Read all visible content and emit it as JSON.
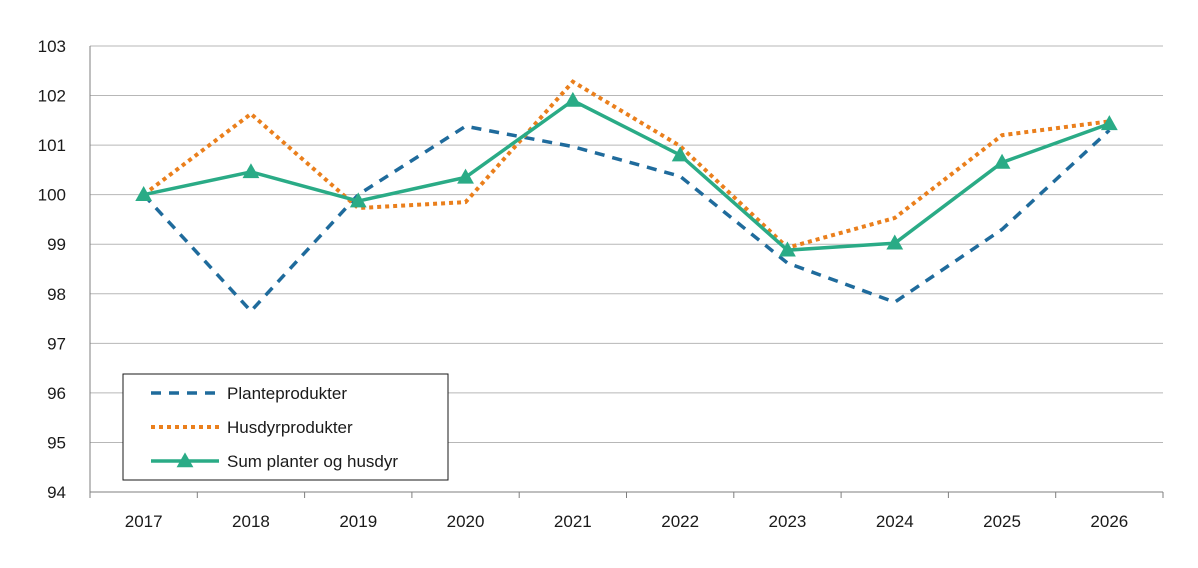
{
  "chart_data": {
    "type": "line",
    "title": "",
    "xlabel": "",
    "ylabel": "",
    "categories": [
      "2017",
      "2018",
      "2019",
      "2020",
      "2021",
      "2022",
      "2023",
      "2024",
      "2025",
      "2026"
    ],
    "ylim": [
      94,
      103
    ],
    "yticks": [
      "94",
      "95",
      "96",
      "97",
      "98",
      "99",
      "100",
      "101",
      "102",
      "103"
    ],
    "grid": "horizontal",
    "legend_position": "bottom-left",
    "series": [
      {
        "name": "Planteprodukter",
        "values": [
          100.0,
          97.65,
          100.0,
          101.38,
          100.97,
          100.37,
          98.62,
          97.83,
          99.3,
          101.3
        ],
        "color": "#1f6b9c",
        "style": "dashed",
        "marker": "none"
      },
      {
        "name": "Husdyrprodukter",
        "values": [
          100.0,
          101.63,
          99.73,
          99.85,
          102.28,
          100.98,
          98.93,
          99.53,
          101.2,
          101.48
        ],
        "color": "#ea7f1c",
        "style": "dotted",
        "marker": "none"
      },
      {
        "name": "Sum planter og husdyr",
        "values": [
          100.0,
          100.46,
          99.87,
          100.35,
          101.9,
          100.8,
          98.88,
          99.02,
          100.65,
          101.43
        ],
        "color": "#2aab86",
        "style": "solid",
        "marker": "triangle"
      }
    ]
  }
}
